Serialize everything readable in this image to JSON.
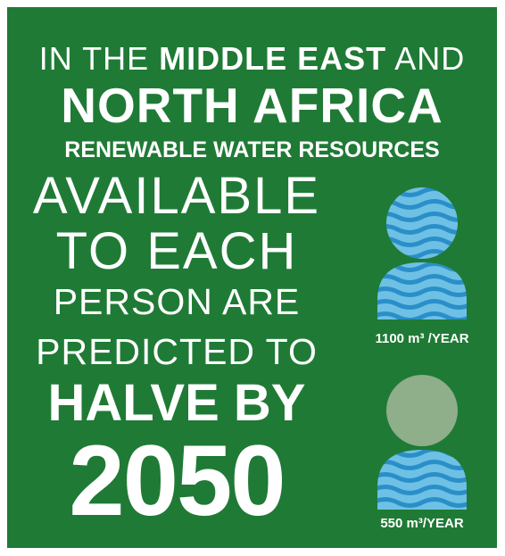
{
  "headline": {
    "line1_a": "IN THE ",
    "line1_b": "MIDDLE EAST",
    "line1_c": " AND",
    "line2": "NORTH AFRICA",
    "line3": "RENEWABLE WATER RESOURCES",
    "line4": "AVAILABLE",
    "line5": "TO EACH",
    "line6": "PERSON ARE",
    "line7": "PREDICTED TO",
    "line8": "HALVE BY",
    "line9": "2050"
  },
  "figures": [
    {
      "icon": "water-person-icon",
      "caption": "1100 m³ /YEAR"
    },
    {
      "icon": "half-water-person-icon",
      "caption": "550 m³/YEAR"
    }
  ],
  "colors": {
    "background": "#1f7a35",
    "text": "#ffffff",
    "water_light": "#6ec1e4",
    "water_dark": "#2a8fc9",
    "empty_head": "#8fae8a"
  }
}
